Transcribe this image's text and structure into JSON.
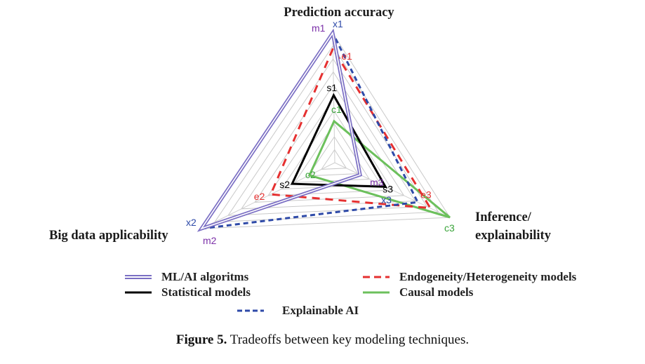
{
  "chart_data": {
    "type": "radar",
    "axes": [
      "Prediction accuracy",
      "Big data applicability",
      "Inference/ explainability"
    ],
    "axis_title_lines": {
      "top": [
        "Prediction accuracy"
      ],
      "left": [
        "Big data applicability"
      ],
      "right": [
        "Inference/",
        "explainability"
      ]
    },
    "range": [
      0,
      10
    ],
    "grid_levels": 10,
    "grid": true,
    "series": [
      {
        "name": "ML/AI algoritms",
        "color": "#7b6fc4",
        "dash": "solid",
        "labels": [
          "m1",
          "m2",
          "m3"
        ],
        "label_color": "#7b2fa8",
        "values": [
          10,
          10,
          2.2
        ]
      },
      {
        "name": "Statistical models",
        "color": "#000000",
        "dash": "solid",
        "labels": [
          "s1",
          "s2",
          "s3"
        ],
        "label_color": "#000000",
        "values": [
          5.2,
          3.2,
          4.4
        ]
      },
      {
        "name": "Endogeneity/Heterogeneity models",
        "color": "#e53030",
        "dash": "dashed",
        "labels": [
          "e1",
          "e2",
          "e3"
        ],
        "label_color": "#e53030",
        "values": [
          8.8,
          4.8,
          8.3
        ]
      },
      {
        "name": "Causal models",
        "color": "#6cc05c",
        "dash": "solid",
        "labels": [
          "c1",
          "c2",
          "c3"
        ],
        "label_color": "#3aa43a",
        "values": [
          3.2,
          1.9,
          10
        ]
      },
      {
        "name": "Explainable AI",
        "color": "#2e4aa8",
        "dash": "dashed",
        "labels": [
          "x1",
          "x2",
          "x3"
        ],
        "label_color": "#2e4aa8",
        "values": [
          10,
          10,
          7.2
        ]
      }
    ]
  },
  "legend": {
    "items": [
      {
        "label": "ML/AI algoritms",
        "color": "#7b6fc4",
        "dash": "double"
      },
      {
        "label": "Statistical models",
        "color": "#000000",
        "dash": "solid"
      },
      {
        "label": "Endogeneity/Heterogeneity models",
        "color": "#e53030",
        "dash": "dashed"
      },
      {
        "label": "Causal models",
        "color": "#6cc05c",
        "dash": "solid"
      },
      {
        "label": "Explainable AI",
        "color": "#2e4aa8",
        "dash": "dashed"
      }
    ]
  },
  "caption": {
    "prefix": "Figure 5.",
    "text": " Tradeoffs between key modeling techniques."
  }
}
